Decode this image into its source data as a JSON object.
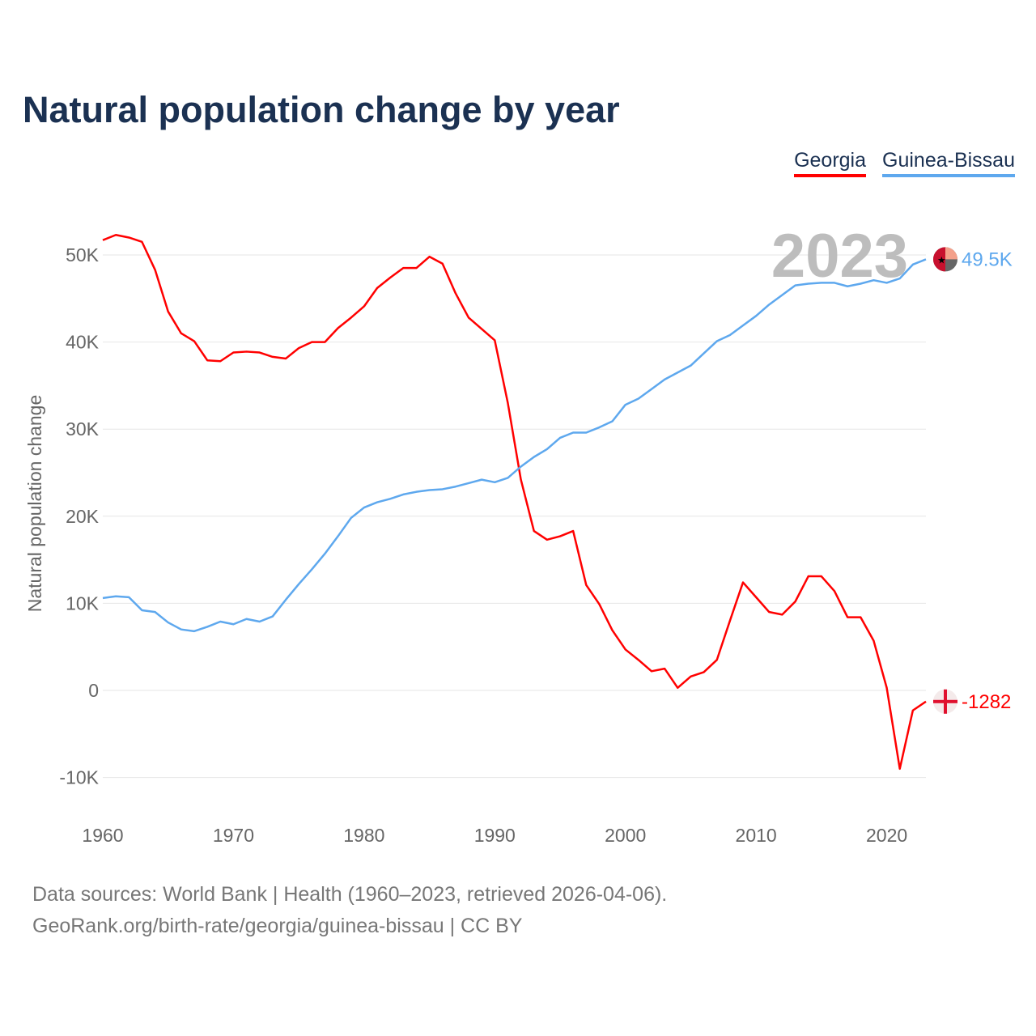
{
  "title": "Natural population change by year",
  "legend": [
    {
      "name": "Georgia",
      "color": "#ff0000"
    },
    {
      "name": "Guinea-Bissau",
      "color": "#5ea8ee"
    }
  ],
  "footer": {
    "line1": "Data sources: World Bank | Health (1960–2023, retrieved 2026-04-06).",
    "line2": "GeoRank.org/birth-rate/georgia/guinea-bissau | CC BY"
  },
  "chart_data": {
    "type": "line",
    "title": "Natural population change by year",
    "xlabel": "",
    "ylabel": "Natural population change",
    "year_label": "2023",
    "xlim": [
      1960,
      2023
    ],
    "ylim": [
      -10000,
      50000
    ],
    "x_ticks": [
      1960,
      1970,
      1980,
      1990,
      2000,
      2010,
      2020
    ],
    "x_tick_labels": [
      "1960",
      "1970",
      "1980",
      "1990",
      "2000",
      "2010",
      "2020"
    ],
    "y_ticks": [
      -10000,
      0,
      10000,
      20000,
      30000,
      40000,
      50000
    ],
    "y_tick_labels": [
      "-10K",
      "0",
      "10K",
      "20K",
      "30K",
      "40K",
      "50K"
    ],
    "grid": true,
    "legend_position": "top-right",
    "x": [
      1960,
      1961,
      1962,
      1963,
      1964,
      1965,
      1966,
      1967,
      1968,
      1969,
      1970,
      1971,
      1972,
      1973,
      1974,
      1975,
      1976,
      1977,
      1978,
      1979,
      1980,
      1981,
      1982,
      1983,
      1984,
      1985,
      1986,
      1987,
      1988,
      1989,
      1990,
      1991,
      1992,
      1993,
      1994,
      1995,
      1996,
      1997,
      1998,
      1999,
      2000,
      2001,
      2002,
      2003,
      2004,
      2005,
      2006,
      2007,
      2008,
      2009,
      2010,
      2011,
      2012,
      2013,
      2014,
      2015,
      2016,
      2017,
      2018,
      2019,
      2020,
      2021,
      2022,
      2023
    ],
    "series": [
      {
        "name": "Georgia",
        "color": "#ff0000",
        "end_label": "-1282",
        "values": [
          51700,
          52300,
          52000,
          51500,
          48300,
          43500,
          41000,
          40100,
          37900,
          37800,
          38800,
          38900,
          38800,
          38300,
          38100,
          39300,
          40000,
          40000,
          41600,
          42800,
          44100,
          46200,
          47400,
          48500,
          48500,
          49800,
          49000,
          45600,
          42800,
          41500,
          40200,
          33000,
          24200,
          18300,
          17300,
          17700,
          18300,
          12100,
          9900,
          6900,
          4700,
          3500,
          2200,
          2500,
          300,
          1600,
          2100,
          3500,
          8000,
          12400,
          10700,
          9000,
          8700,
          10200,
          13100,
          13100,
          11400,
          8400,
          8400,
          5700,
          300,
          -9000,
          -2300,
          -1282
        ]
      },
      {
        "name": "Guinea-Bissau",
        "color": "#5ea8ee",
        "end_label": "49.5K",
        "values": [
          10600,
          10800,
          10700,
          9200,
          9000,
          7800,
          7000,
          6800,
          7300,
          7900,
          7600,
          8200,
          7900,
          8500,
          10400,
          12200,
          13900,
          15700,
          17700,
          19800,
          21000,
          21600,
          22000,
          22500,
          22800,
          23000,
          23100,
          23400,
          23800,
          24200,
          23900,
          24400,
          25700,
          26800,
          27700,
          29000,
          29600,
          29600,
          30200,
          30900,
          32800,
          33500,
          34600,
          35700,
          36500,
          37300,
          38700,
          40100,
          40800,
          41900,
          43000,
          44300,
          45400,
          46500,
          46700,
          46800,
          46800,
          46400,
          46700,
          47100,
          46800,
          47300,
          48900,
          49500
        ]
      }
    ]
  }
}
